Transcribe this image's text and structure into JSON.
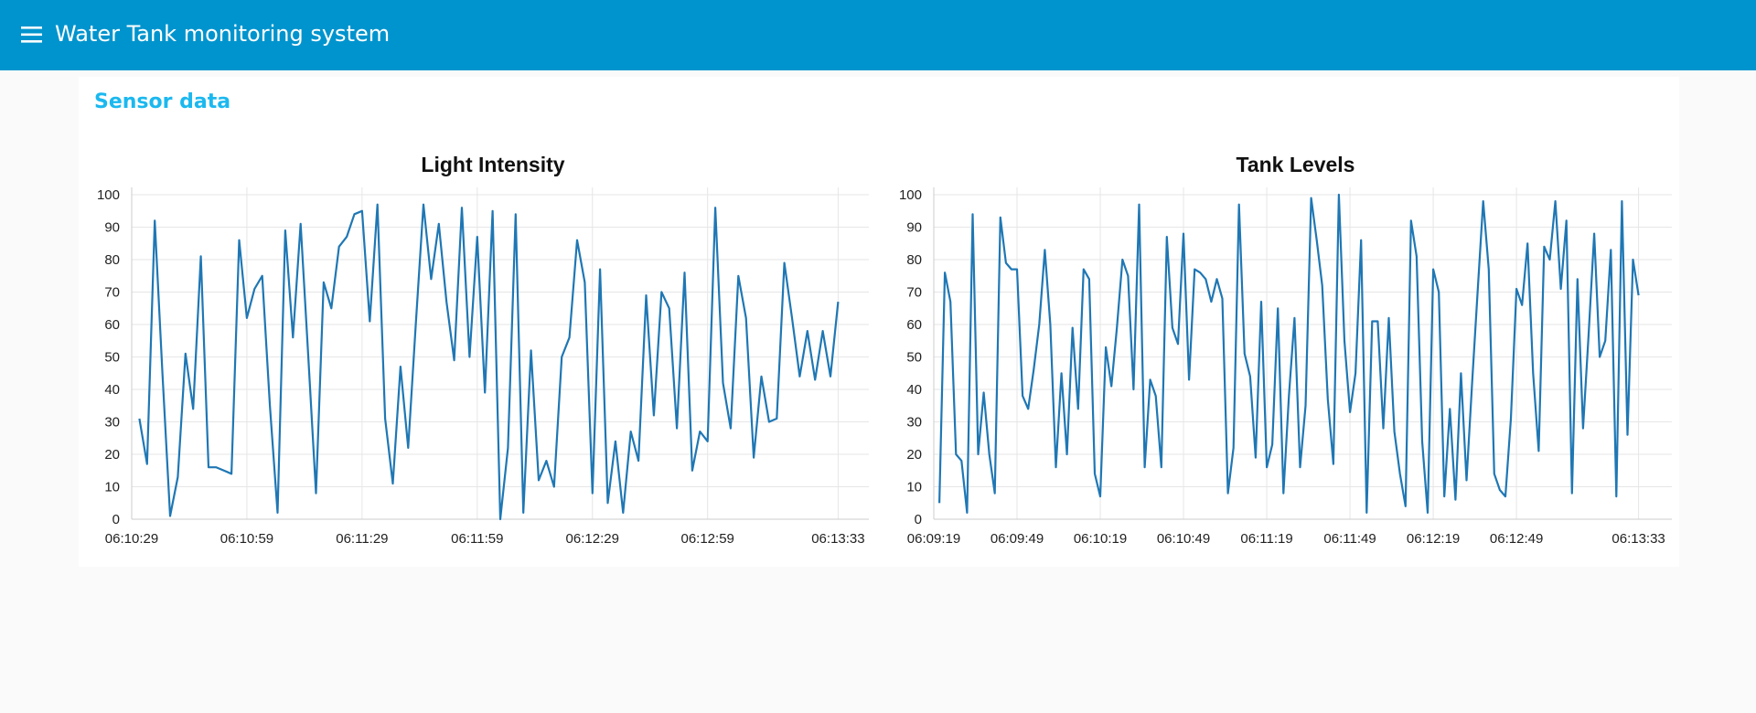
{
  "header": {
    "title": "Water Tank monitoring system"
  },
  "group": {
    "title": "Sensor data"
  },
  "chart_data": [
    {
      "type": "line",
      "title": "Light Intensity",
      "color": "#1f77b4",
      "grid": true,
      "xlim": [
        "06:10:29",
        "06:13:41"
      ],
      "ylim": [
        0,
        100
      ],
      "xticks": [
        "06:10:29",
        "06:10:59",
        "06:11:29",
        "06:11:59",
        "06:12:29",
        "06:12:59",
        "06:13:33"
      ],
      "yticks": [
        0,
        10,
        20,
        30,
        40,
        50,
        60,
        70,
        80,
        90,
        100
      ],
      "x": [
        "06:10:31",
        "06:10:33",
        "06:10:35",
        "06:10:37",
        "06:10:39",
        "06:10:41",
        "06:10:43",
        "06:10:45",
        "06:10:47",
        "06:10:49",
        "06:10:51",
        "06:10:53",
        "06:10:55",
        "06:10:57",
        "06:10:59",
        "06:11:01",
        "06:11:03",
        "06:11:05",
        "06:11:07",
        "06:11:09",
        "06:11:11",
        "06:11:13",
        "06:11:15",
        "06:11:17",
        "06:11:19",
        "06:11:21",
        "06:11:23",
        "06:11:25",
        "06:11:27",
        "06:11:29",
        "06:11:31",
        "06:11:33",
        "06:11:35",
        "06:11:37",
        "06:11:39",
        "06:11:41",
        "06:11:43",
        "06:11:45",
        "06:11:47",
        "06:11:49",
        "06:11:51",
        "06:11:53",
        "06:11:55",
        "06:11:57",
        "06:11:59",
        "06:12:01",
        "06:12:03",
        "06:12:05",
        "06:12:07",
        "06:12:09",
        "06:12:11",
        "06:12:13",
        "06:12:15",
        "06:12:17",
        "06:12:19",
        "06:12:21",
        "06:12:23",
        "06:12:25",
        "06:12:27",
        "06:12:29",
        "06:12:31",
        "06:12:33",
        "06:12:35",
        "06:12:37",
        "06:12:39",
        "06:12:41",
        "06:12:43",
        "06:12:45",
        "06:12:47",
        "06:12:49",
        "06:12:51",
        "06:12:53",
        "06:12:55",
        "06:12:57",
        "06:12:59",
        "06:13:01",
        "06:13:03",
        "06:13:05",
        "06:13:07",
        "06:13:09",
        "06:13:11",
        "06:13:13",
        "06:13:15",
        "06:13:17",
        "06:13:19",
        "06:13:21",
        "06:13:23",
        "06:13:25",
        "06:13:27",
        "06:13:29",
        "06:13:31",
        "06:13:33"
      ],
      "values": [
        31,
        17,
        92,
        45,
        1,
        13,
        51,
        34,
        81,
        16,
        16,
        15,
        14,
        86,
        62,
        71,
        75,
        35,
        2,
        89,
        56,
        91,
        50,
        8,
        73,
        65,
        84,
        87,
        94,
        95,
        61,
        97,
        31,
        11,
        47,
        22,
        60,
        97,
        74,
        91,
        67,
        49,
        96,
        50,
        87,
        39,
        95,
        0,
        22,
        94,
        2,
        52,
        12,
        18,
        10,
        50,
        56,
        86,
        73,
        8,
        77,
        5,
        24,
        2,
        27,
        18,
        69,
        32,
        70,
        65,
        28,
        76,
        15,
        27,
        24,
        96,
        42,
        28,
        75,
        62,
        19,
        44,
        30,
        31,
        79,
        62,
        44,
        58,
        43,
        58,
        44,
        67
      ]
    },
    {
      "type": "line",
      "title": "Tank Levels",
      "color": "#1f77b4",
      "grid": true,
      "xlim": [
        "06:09:19",
        "06:13:45"
      ],
      "ylim": [
        0,
        100
      ],
      "xticks": [
        "06:09:19",
        "06:09:49",
        "06:10:19",
        "06:10:49",
        "06:11:19",
        "06:11:49",
        "06:12:19",
        "06:12:49",
        "06:13:33"
      ],
      "yticks": [
        0,
        10,
        20,
        30,
        40,
        50,
        60,
        70,
        80,
        90,
        100
      ],
      "x": [
        "06:09:21",
        "06:09:23",
        "06:09:25",
        "06:09:27",
        "06:09:29",
        "06:09:31",
        "06:09:33",
        "06:09:35",
        "06:09:37",
        "06:09:39",
        "06:09:41",
        "06:09:43",
        "06:09:45",
        "06:09:47",
        "06:09:49",
        "06:09:51",
        "06:09:53",
        "06:09:55",
        "06:09:57",
        "06:09:59",
        "06:10:01",
        "06:10:03",
        "06:10:05",
        "06:10:07",
        "06:10:09",
        "06:10:11",
        "06:10:13",
        "06:10:15",
        "06:10:17",
        "06:10:19",
        "06:10:21",
        "06:10:23",
        "06:10:25",
        "06:10:27",
        "06:10:29",
        "06:10:31",
        "06:10:33",
        "06:10:35",
        "06:10:37",
        "06:10:39",
        "06:10:41",
        "06:10:43",
        "06:10:45",
        "06:10:47",
        "06:10:49",
        "06:10:51",
        "06:10:53",
        "06:10:55",
        "06:10:57",
        "06:10:59",
        "06:11:01",
        "06:11:03",
        "06:11:05",
        "06:11:07",
        "06:11:09",
        "06:11:11",
        "06:11:13",
        "06:11:15",
        "06:11:17",
        "06:11:19",
        "06:11:21",
        "06:11:23",
        "06:11:25",
        "06:11:27",
        "06:11:29",
        "06:11:31",
        "06:11:33",
        "06:11:35",
        "06:11:37",
        "06:11:39",
        "06:11:41",
        "06:11:43",
        "06:11:45",
        "06:11:47",
        "06:11:49",
        "06:11:51",
        "06:11:53",
        "06:11:55",
        "06:11:57",
        "06:11:59",
        "06:12:01",
        "06:12:03",
        "06:12:05",
        "06:12:07",
        "06:12:09",
        "06:12:11",
        "06:12:13",
        "06:12:15",
        "06:12:17",
        "06:12:19",
        "06:12:21",
        "06:12:23",
        "06:12:25",
        "06:12:27",
        "06:12:29",
        "06:12:31",
        "06:12:33",
        "06:12:35",
        "06:12:37",
        "06:12:39",
        "06:12:41",
        "06:12:43",
        "06:12:45",
        "06:12:47",
        "06:12:49",
        "06:12:51",
        "06:12:53",
        "06:12:55",
        "06:12:57",
        "06:12:59",
        "06:13:01",
        "06:13:03",
        "06:13:05",
        "06:13:07",
        "06:13:09",
        "06:13:11",
        "06:13:13",
        "06:13:15",
        "06:13:17",
        "06:13:19",
        "06:13:21",
        "06:13:23",
        "06:13:25",
        "06:13:27",
        "06:13:29",
        "06:13:31",
        "06:13:33"
      ],
      "values": [
        5,
        76,
        67,
        20,
        18,
        2,
        94,
        20,
        39,
        20,
        8,
        93,
        79,
        77,
        77,
        38,
        34,
        46,
        60,
        83,
        60,
        16,
        45,
        20,
        59,
        34,
        77,
        74,
        14,
        7,
        53,
        41,
        59,
        80,
        75,
        40,
        97,
        16,
        43,
        38,
        16,
        87,
        59,
        54,
        88,
        43,
        77,
        76,
        74,
        67,
        74,
        68,
        8,
        22,
        97,
        51,
        44,
        19,
        67,
        16,
        23,
        65,
        8,
        38,
        62,
        16,
        35,
        99,
        86,
        72,
        37,
        17,
        100,
        55,
        33,
        45,
        86,
        2,
        61,
        61,
        28,
        62,
        27,
        14,
        4,
        92,
        81,
        24,
        2,
        77,
        70,
        7,
        34,
        6,
        45,
        12,
        42,
        70,
        98,
        77,
        14,
        9,
        7,
        31,
        71,
        66,
        85,
        45,
        21,
        84,
        80,
        98,
        71,
        92,
        8,
        74,
        28,
        57,
        88,
        50,
        55,
        83,
        7,
        98,
        26,
        80,
        69
      ]
    }
  ]
}
